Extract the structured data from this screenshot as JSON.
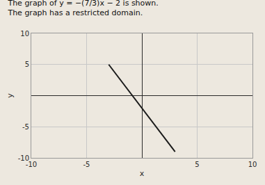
{
  "chart_data": {
    "type": "line",
    "title": "The graph of y = −(7/3)x − 2 is shown. The graph has a restricted domain.",
    "x": [
      -3,
      3
    ],
    "values": [
      4.9999999999,
      -8.9999999999
    ],
    "color": "#1a1a1a",
    "xlim": [
      -10,
      10
    ],
    "ylim": [
      -10,
      10
    ],
    "xticks": [
      -10,
      -5,
      5,
      10
    ],
    "yticks": [
      -10,
      -5,
      5,
      10
    ],
    "xlabel": "x",
    "ylabel": "y",
    "grid": true
  }
}
